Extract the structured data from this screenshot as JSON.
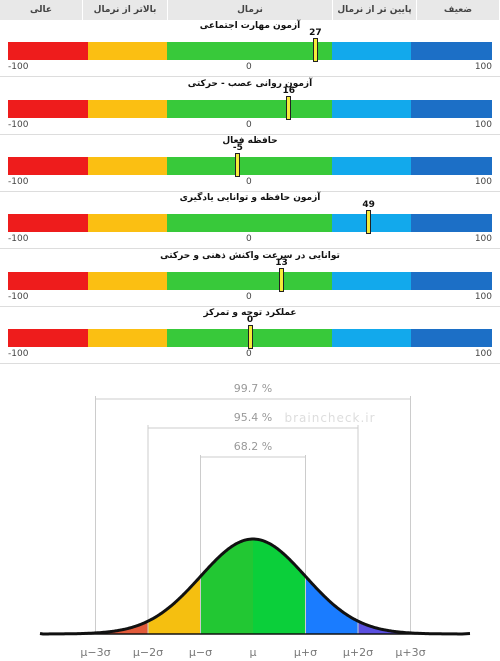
{
  "header": {
    "columns": [
      "ضعیف",
      "پایین تر از نرمال",
      "نرمال",
      "بالاتر از نرمال",
      "عالی"
    ]
  },
  "colors": {
    "weak": "#ee1c1c",
    "below": "#fbbf12",
    "normal": "#38c93a",
    "above": "#12a9ec",
    "excellent": "#1c6fc6",
    "marker": "#f4ec3a"
  },
  "scale": {
    "min_label": "-100",
    "mid_label": "0",
    "max_label": "100"
  },
  "tests": [
    {
      "name": "آزمون مهارت اجتماعی",
      "value": 27,
      "value_label": "27"
    },
    {
      "name": "آزمون روانی عصب - حرکتی",
      "value": 16,
      "value_label": "16"
    },
    {
      "name": "حافظه فعال",
      "value": -5,
      "value_label": "-5"
    },
    {
      "name": "آزمون حافظه و توانایی یادگیری",
      "value": 49,
      "value_label": "49"
    },
    {
      "name": "توانایی در سرعت واکنش ذهنی و حرکتی",
      "value": 13,
      "value_label": "13"
    },
    {
      "name": "عملکرد توجه و تمرکز",
      "value": 0,
      "value_label": "0"
    }
  ],
  "chart_data": [
    {
      "type": "bar",
      "title": "",
      "categories": [
        "آزمون مهارت اجتماعی",
        "آزمون روانی عصب - حرکتی",
        "حافظه فعال",
        "آزمون حافظه و توانایی یادگیری",
        "توانایی در سرعت واکنش ذهنی و حرکتی",
        "عملکرد توجه و تمرکز"
      ],
      "values": [
        27,
        16,
        -5,
        49,
        13,
        0
      ],
      "xlim": [
        -100,
        100
      ]
    },
    {
      "type": "area",
      "title": "",
      "x_ticks": [
        "μ−3σ",
        "μ−2σ",
        "μ−σ",
        "μ",
        "μ+σ",
        "μ+2σ",
        "μ+3σ"
      ],
      "intervals": [
        {
          "label": "99.7 %",
          "from": -3,
          "to": 3
        },
        {
          "label": "95.4 %",
          "from": -2,
          "to": 2
        },
        {
          "label": "68.2 %",
          "from": -1,
          "to": 1
        }
      ],
      "watermark": "braincheck.ir"
    }
  ]
}
